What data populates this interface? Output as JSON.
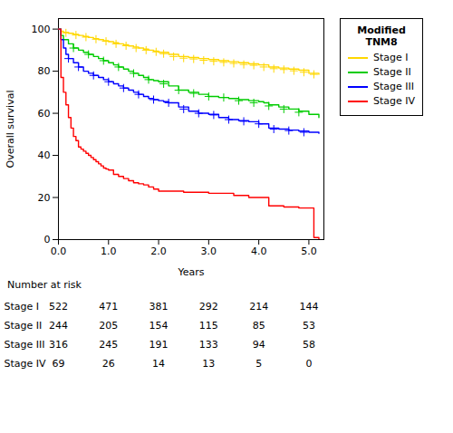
{
  "chart_data": {
    "type": "step",
    "title": "Modified\nTNM8",
    "xlabel": "Years",
    "ylabel": "Overall survival",
    "xlim": [
      0,
      5.3
    ],
    "ylim": [
      0,
      105
    ],
    "xticks": [
      0,
      1,
      2,
      3,
      4,
      5
    ],
    "yticks": [
      0,
      20,
      40,
      60,
      80,
      100
    ],
    "grid": false,
    "legend": "right",
    "number_at_risk_label": "Number at risk",
    "number_at_risk_x": [
      0,
      1,
      2,
      3,
      4,
      5
    ],
    "series": [
      {
        "name": "Stage I",
        "color": "#FFD700",
        "x": [
          0,
          0.05,
          0.1,
          0.2,
          0.3,
          0.4,
          0.5,
          0.6,
          0.7,
          0.8,
          0.9,
          1.0,
          1.1,
          1.2,
          1.3,
          1.4,
          1.5,
          1.6,
          1.7,
          1.8,
          1.9,
          2.0,
          2.2,
          2.4,
          2.6,
          2.8,
          3.0,
          3.2,
          3.4,
          3.6,
          3.8,
          4.0,
          4.2,
          4.4,
          4.6,
          4.8,
          5.0,
          5.2
        ],
        "values": [
          100,
          99,
          98.5,
          98,
          97.5,
          97,
          96.5,
          96,
          95.5,
          95,
          94.5,
          94,
          93.5,
          93,
          92.5,
          92,
          91.5,
          91,
          90.5,
          90,
          89.5,
          89,
          88,
          87,
          86.5,
          86,
          85.5,
          85,
          84.5,
          84,
          83.5,
          83,
          82,
          81.5,
          81,
          80.5,
          79,
          78.5
        ],
        "censored_x": [
          0.15,
          0.35,
          0.55,
          0.75,
          0.95,
          1.15,
          1.35,
          1.55,
          1.75,
          1.95,
          2.1,
          2.3,
          2.5,
          2.7,
          2.9,
          3.1,
          3.3,
          3.5,
          3.7,
          3.9,
          4.1,
          4.3,
          4.5,
          4.7,
          4.9,
          5.1
        ],
        "censored_values": [
          98.2,
          97.2,
          96.2,
          95.2,
          94.2,
          93.0,
          92.1,
          91.0,
          90.0,
          89.2,
          88.3,
          87.0,
          86.2,
          85.8,
          85.2,
          84.7,
          84.2,
          83.7,
          83.2,
          82.8,
          82.0,
          81.2,
          80.8,
          80.2,
          79.5,
          78.5
        ],
        "number_at_risk": [
          522,
          471,
          381,
          292,
          214,
          144
        ]
      },
      {
        "name": "Stage II",
        "color": "#00CC00",
        "x": [
          0,
          0.05,
          0.1,
          0.2,
          0.3,
          0.4,
          0.5,
          0.6,
          0.7,
          0.8,
          0.9,
          1.0,
          1.1,
          1.2,
          1.3,
          1.4,
          1.5,
          1.6,
          1.7,
          1.8,
          1.9,
          2.0,
          2.2,
          2.4,
          2.6,
          2.8,
          3.0,
          3.2,
          3.4,
          3.6,
          3.8,
          4.0,
          4.1,
          4.2,
          4.4,
          4.6,
          4.8,
          5.0,
          5.2
        ],
        "values": [
          100,
          97,
          95,
          93,
          91,
          90,
          89,
          88,
          87,
          86,
          85,
          84,
          83,
          82,
          81,
          80,
          79,
          78,
          77,
          76,
          75.5,
          75,
          73,
          71,
          70,
          69,
          68,
          67.5,
          67,
          66.5,
          66,
          65.5,
          65,
          64,
          63,
          62,
          61,
          59.5,
          58
        ],
        "censored_x": [
          0.3,
          0.6,
          0.9,
          1.2,
          1.5,
          1.8,
          2.1,
          2.4,
          2.7,
          3.0,
          3.3,
          3.6,
          3.9,
          4.2,
          4.5,
          4.8
        ],
        "censored_values": [
          91,
          88,
          85,
          82,
          79,
          76,
          74,
          71,
          69.5,
          68,
          67.5,
          66,
          65,
          63.5,
          62,
          60.5
        ],
        "number_at_risk": [
          244,
          205,
          154,
          115,
          85,
          53
        ]
      },
      {
        "name": "Stage III",
        "color": "#0000FF",
        "x": [
          0,
          0.05,
          0.1,
          0.15,
          0.2,
          0.3,
          0.4,
          0.5,
          0.6,
          0.7,
          0.8,
          0.9,
          1.0,
          1.1,
          1.2,
          1.3,
          1.4,
          1.5,
          1.6,
          1.7,
          1.8,
          1.9,
          2.0,
          2.1,
          2.2,
          2.4,
          2.6,
          2.8,
          3.0,
          3.2,
          3.4,
          3.6,
          3.8,
          4.0,
          4.2,
          4.4,
          4.6,
          4.8,
          5.0,
          5.2
        ],
        "values": [
          100,
          95,
          91,
          88,
          86,
          84,
          82,
          80,
          79,
          78,
          77,
          76,
          75,
          74,
          73,
          72,
          71,
          70,
          69,
          68,
          67,
          66.5,
          66,
          65.5,
          65,
          63,
          61,
          60,
          59.5,
          58,
          57,
          56.5,
          56,
          55,
          53,
          52.5,
          52,
          51.5,
          51,
          50.5
        ],
        "censored_x": [
          0.2,
          0.4,
          0.7,
          1.0,
          1.3,
          1.6,
          1.9,
          2.2,
          2.5,
          2.8,
          3.1,
          3.4,
          3.7,
          4.0,
          4.3,
          4.6,
          4.9
        ],
        "censored_values": [
          86,
          82,
          78,
          75,
          72,
          69,
          66.5,
          65,
          62,
          60,
          59.2,
          57,
          56.2,
          55,
          52.5,
          51.8,
          51
        ],
        "number_at_risk": [
          316,
          245,
          191,
          133,
          94,
          58
        ]
      },
      {
        "name": "Stage IV",
        "color": "#FF0000",
        "x": [
          0,
          0.05,
          0.1,
          0.15,
          0.2,
          0.25,
          0.3,
          0.35,
          0.4,
          0.45,
          0.5,
          0.55,
          0.6,
          0.65,
          0.7,
          0.75,
          0.8,
          0.85,
          0.9,
          0.95,
          1.0,
          1.1,
          1.2,
          1.3,
          1.4,
          1.5,
          1.6,
          1.7,
          1.8,
          1.9,
          2.0,
          2.5,
          3.0,
          3.5,
          3.8,
          4.0,
          4.2,
          4.5,
          4.8,
          5.0,
          5.1,
          5.2
        ],
        "values": [
          100,
          77,
          70,
          64,
          58,
          53,
          49,
          47,
          44,
          43,
          42,
          41,
          40,
          39,
          38,
          37,
          36,
          35,
          34,
          33.5,
          33,
          31,
          30,
          29,
          28,
          27,
          26.5,
          26,
          25,
          24,
          23,
          22.5,
          22,
          21,
          20,
          20,
          16,
          15.5,
          15,
          15,
          1,
          0
        ],
        "number_at_risk": [
          69,
          26,
          14,
          13,
          5,
          0
        ]
      }
    ]
  }
}
